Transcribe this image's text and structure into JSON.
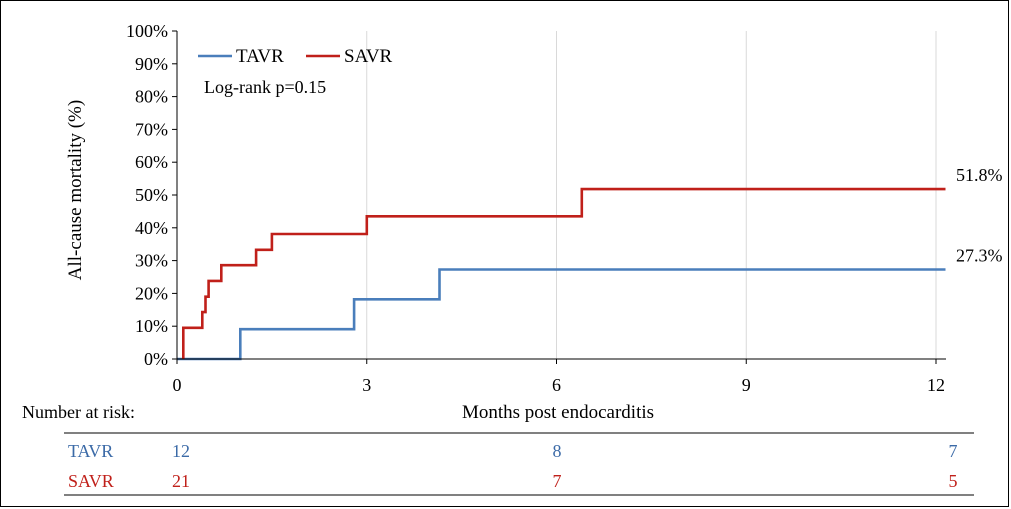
{
  "chart_data": {
    "type": "line",
    "step": true,
    "xlabel": "Months post endocarditis",
    "ylabel": "All-cause mortality (%)",
    "xlim": [
      0,
      12
    ],
    "ylim": [
      0,
      100
    ],
    "x_ticks": [
      0,
      3,
      6,
      9,
      12
    ],
    "y_ticks": [
      "0%",
      "10%",
      "20%",
      "30%",
      "40%",
      "50%",
      "60%",
      "70%",
      "80%",
      "90%",
      "100%"
    ],
    "y_tick_values": [
      0,
      10,
      20,
      30,
      40,
      50,
      60,
      70,
      80,
      90,
      100
    ],
    "grid": "vertical",
    "legend_position": "top-left",
    "annotation": "Log-rank p=0.15",
    "series": [
      {
        "name": "TAVR",
        "color": "#4a7ebb",
        "x": [
          0,
          1.0,
          1.0,
          2.8,
          2.8,
          4.15,
          4.15,
          12.15
        ],
        "y": [
          0,
          0,
          9.1,
          9.1,
          18.2,
          18.2,
          27.3,
          27.3
        ],
        "end_label": "27.3%"
      },
      {
        "name": "SAVR",
        "color": "#c0201a",
        "x": [
          0.1,
          0.1,
          0.4,
          0.4,
          0.45,
          0.45,
          0.5,
          0.5,
          0.7,
          0.7,
          1.25,
          1.25,
          1.5,
          1.5,
          3.0,
          3.0,
          6.4,
          6.4,
          12.15
        ],
        "y": [
          0,
          9.5,
          9.5,
          14.3,
          14.3,
          19.0,
          19.0,
          23.8,
          23.8,
          28.6,
          28.6,
          33.3,
          33.3,
          38.1,
          38.1,
          43.5,
          43.5,
          51.8,
          51.8
        ],
        "end_label": "51.8%"
      }
    ],
    "risk_table": {
      "title": "Number at risk:",
      "rows": [
        {
          "name": "TAVR",
          "color": "#3b6aa7",
          "values": [
            "12",
            "8",
            "7"
          ]
        },
        {
          "name": "SAVR",
          "color": "#c0201a",
          "values": [
            "21",
            "7",
            "5"
          ]
        }
      ]
    }
  }
}
